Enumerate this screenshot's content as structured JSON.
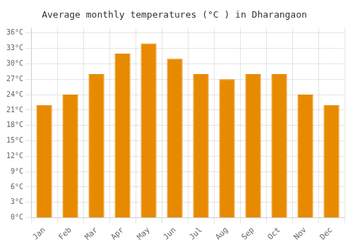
{
  "chart_data": {
    "type": "bar",
    "title": "Average monthly temperatures (°C ) in Dharangaon",
    "categories": [
      "Jan",
      "Feb",
      "Mar",
      "Apr",
      "May",
      "Jun",
      "Jul",
      "Aug",
      "Sep",
      "Oct",
      "Nov",
      "Dec"
    ],
    "values": [
      22,
      24,
      28,
      32,
      34,
      31,
      28,
      27,
      28,
      28,
      24,
      22
    ],
    "color": "#E88A00",
    "ylim": [
      0,
      37
    ],
    "yticks": [
      {
        "value": 0,
        "label": "0°C"
      },
      {
        "value": 3,
        "label": "3°C"
      },
      {
        "value": 6,
        "label": "6°C"
      },
      {
        "value": 9,
        "label": "9°C"
      },
      {
        "value": 12,
        "label": "12°C"
      },
      {
        "value": 15,
        "label": "15°C"
      },
      {
        "value": 18,
        "label": "18°C"
      },
      {
        "value": 21,
        "label": "21°C"
      },
      {
        "value": 24,
        "label": "24°C"
      },
      {
        "value": 27,
        "label": "27°C"
      },
      {
        "value": 30,
        "label": "30°C"
      },
      {
        "value": 33,
        "label": "33°C"
      },
      {
        "value": 36,
        "label": "36°C"
      }
    ],
    "grid": true
  }
}
